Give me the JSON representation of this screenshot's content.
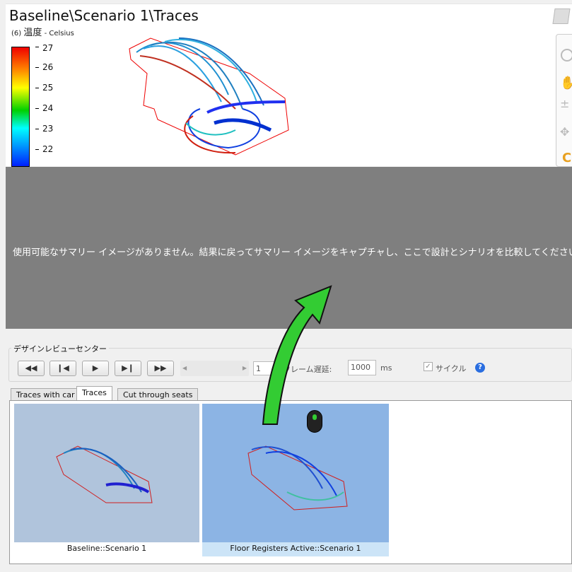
{
  "viewer": {
    "title": "Baseline\\Scenario 1\\Traces",
    "legend": {
      "index": "(6)",
      "quantity": "温度",
      "unit": "- Celsius",
      "ticks": [
        "27",
        "26",
        "25",
        "24",
        "23",
        "22"
      ],
      "range": [
        21.6,
        27
      ]
    }
  },
  "message": "使用可能なサマリー イメージがありません。結果に戻ってサマリー イメージをキャプチャし、ここで設計とシナリオを比較してください。",
  "review_center": {
    "label": "デザインレビューセンター",
    "buttons": [
      "first",
      "previous",
      "play",
      "next",
      "last"
    ],
    "frame": "1",
    "frame_delay_label": "フレーム遅延:",
    "frame_delay": "1000",
    "ms": "ms",
    "cycle_label": "サイクル",
    "cycle_checked": true
  },
  "tabs": [
    {
      "label": "Traces with car"
    },
    {
      "label": "Traces",
      "active": true
    },
    {
      "label": "Cut through seats"
    }
  ],
  "thumbnails": [
    {
      "caption": "Baseline::Scenario 1",
      "selected": false
    },
    {
      "caption": "Floor Registers Active::Scenario 1",
      "selected": true
    }
  ],
  "colors": {
    "arrow": "#33cc33",
    "gray": "#7f7f7f",
    "selected": "#cce4f7"
  }
}
